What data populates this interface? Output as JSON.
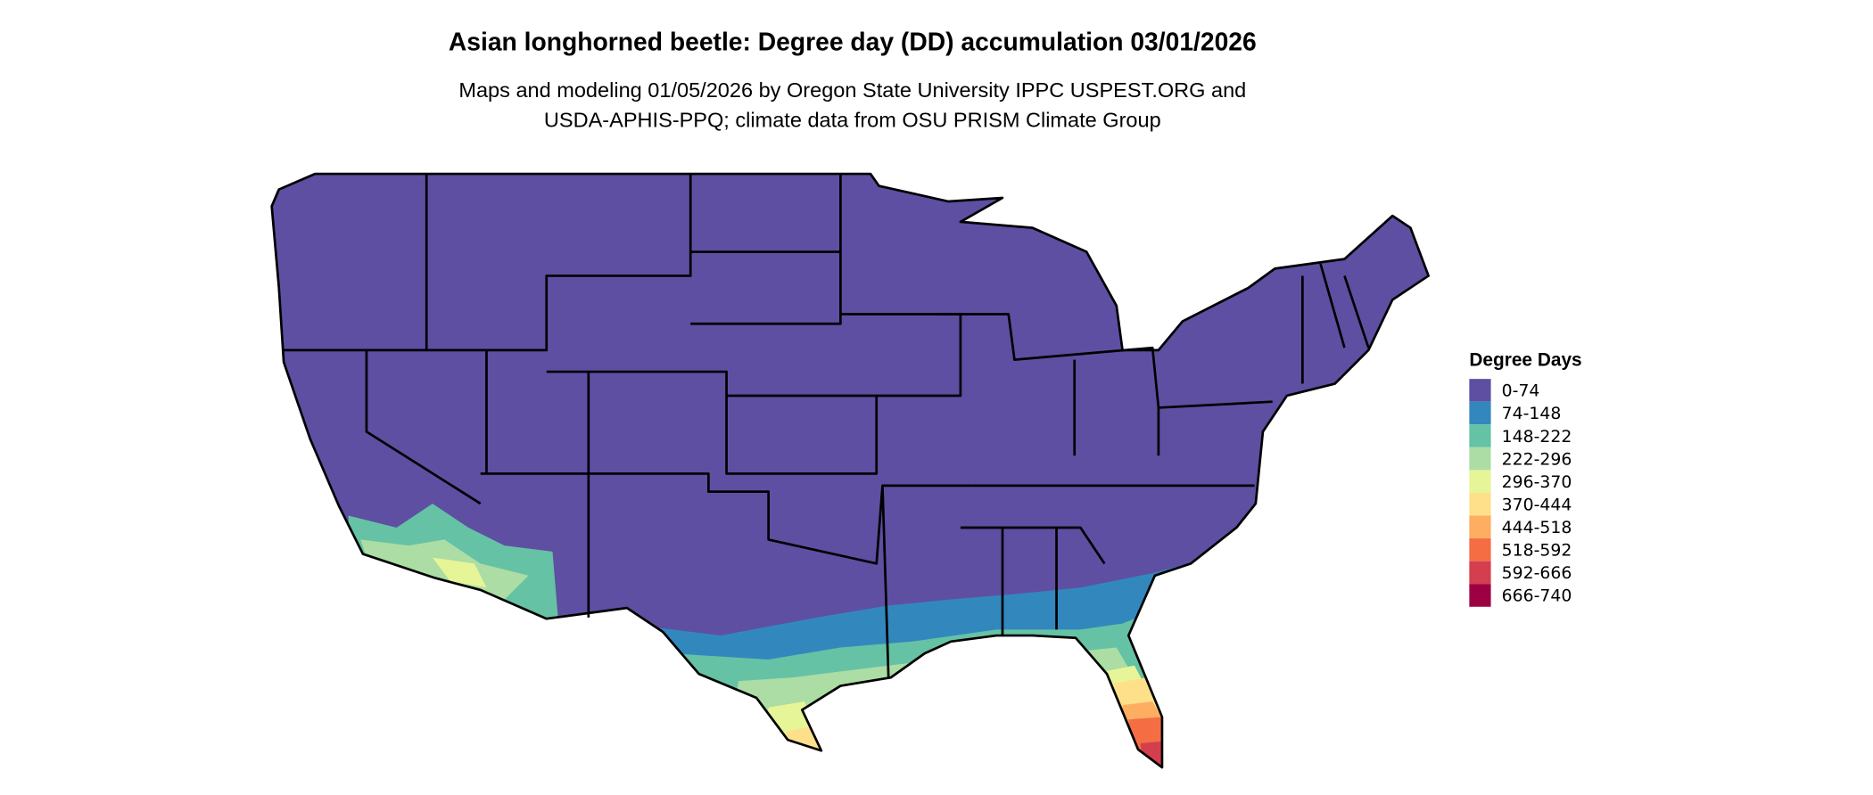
{
  "title": "Asian longhorned beetle: Degree day (DD) accumulation 03/01/2026",
  "subtitle_lines": [
    "Maps and modeling 01/05/2026 by Oregon State University IPPC USPEST.ORG and",
    "USDA-APHIS-PPQ; climate data from OSU PRISM Climate Group"
  ],
  "legend": {
    "title": "Degree Days",
    "items": [
      {
        "label": "0-74",
        "color": "#5E4FA2"
      },
      {
        "label": "74-148",
        "color": "#3288BD"
      },
      {
        "label": "148-222",
        "color": "#66C2A5"
      },
      {
        "label": "222-296",
        "color": "#ABDDA4"
      },
      {
        "label": "296-370",
        "color": "#E6F598"
      },
      {
        "label": "370-444",
        "color": "#FEE08B"
      },
      {
        "label": "444-518",
        "color": "#FDAE61"
      },
      {
        "label": "518-592",
        "color": "#F46D43"
      },
      {
        "label": "592-666",
        "color": "#D53E4F"
      },
      {
        "label": "666-740",
        "color": "#9E0142"
      }
    ]
  }
}
